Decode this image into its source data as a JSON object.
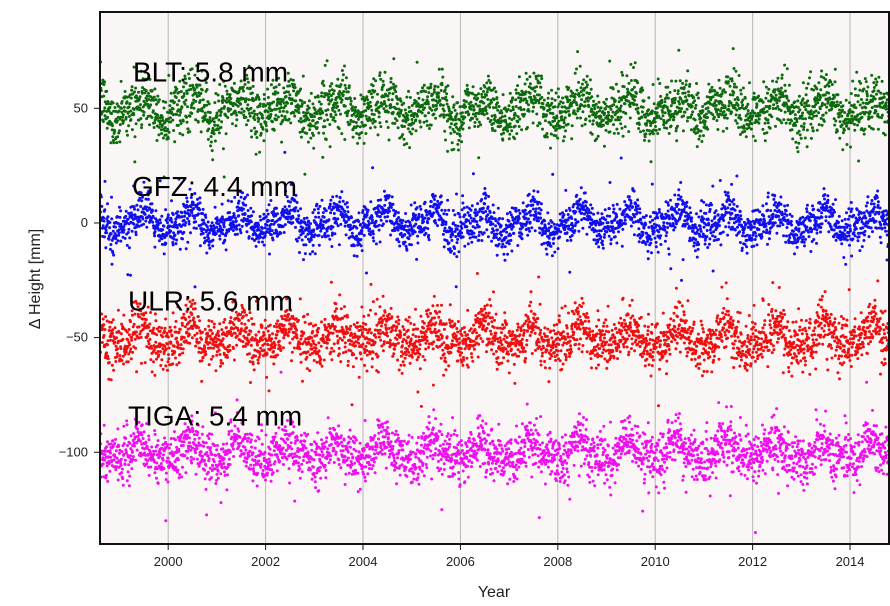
{
  "chart_data": {
    "type": "scatter",
    "title": "",
    "xlabel": "Year",
    "ylabel": "Δ Height [mm]",
    "xlim": [
      1998.6,
      2014.8
    ],
    "ylim": [
      -140,
      92
    ],
    "grid": "vertical lines at x ticks",
    "background_color": "#fbf6f6",
    "xticks": [
      2000,
      2002,
      2004,
      2006,
      2008,
      2010,
      2012,
      2014
    ],
    "xtick_labels": [
      "2000",
      "2002",
      "2004",
      "2006",
      "2008",
      "2010",
      "2012",
      "2014"
    ],
    "yticks": [
      -100,
      -50,
      0,
      50
    ],
    "ytick_labels": [
      "−100",
      "−50",
      "0",
      "50"
    ],
    "series": [
      {
        "name": "BLT",
        "label": "BLT: 5.8 mm",
        "offset": 50,
        "rms_mm": 5.8,
        "color": "#0d6a0d"
      },
      {
        "name": "GFZ",
        "label": "GFZ: 4.4 mm",
        "offset": 0,
        "rms_mm": 4.4,
        "color": "#1010ee"
      },
      {
        "name": "ULR",
        "label": "ULR: 5.6 mm",
        "offset": -50,
        "rms_mm": 5.6,
        "color": "#ee1010"
      },
      {
        "name": "TIGA",
        "label": "TIGA: 5.4 mm",
        "offset": -100,
        "rms_mm": 5.4,
        "color": "#ee10ee"
      }
    ]
  }
}
